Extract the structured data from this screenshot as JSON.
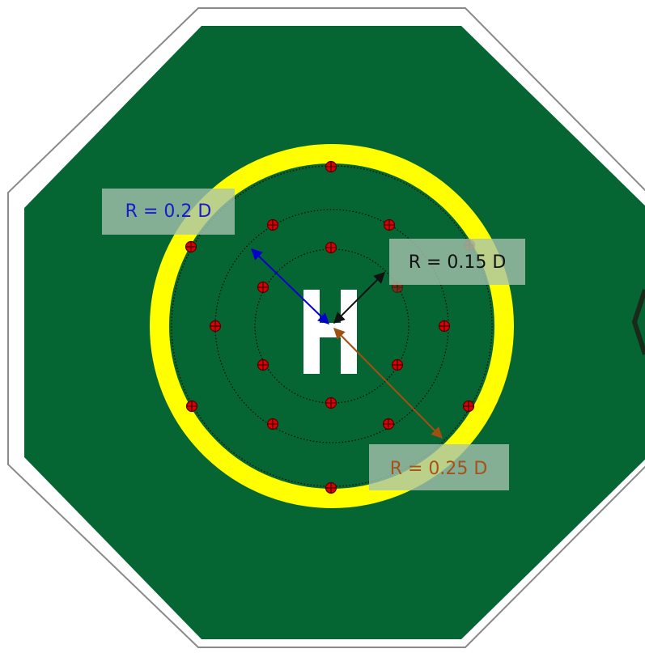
{
  "diagram": {
    "labels": {
      "inner_radius": "R = 0.15 D",
      "middle_radius": "R = 0.2 D",
      "outer_radius": "R = 0.25 D",
      "center_mark": "H"
    },
    "colors": {
      "pad_green": "#066633",
      "ring_yellow": "#ffff00",
      "light_red": "#dd0000",
      "label_box": "#a8c4b0",
      "inner_label_text": "#111111",
      "middle_label_text": "#1a1acc",
      "outer_label_text": "#a8521a",
      "inner_arrow": "#111111",
      "middle_arrow": "#0000cc",
      "outer_arrow": "#a0500f"
    }
  }
}
